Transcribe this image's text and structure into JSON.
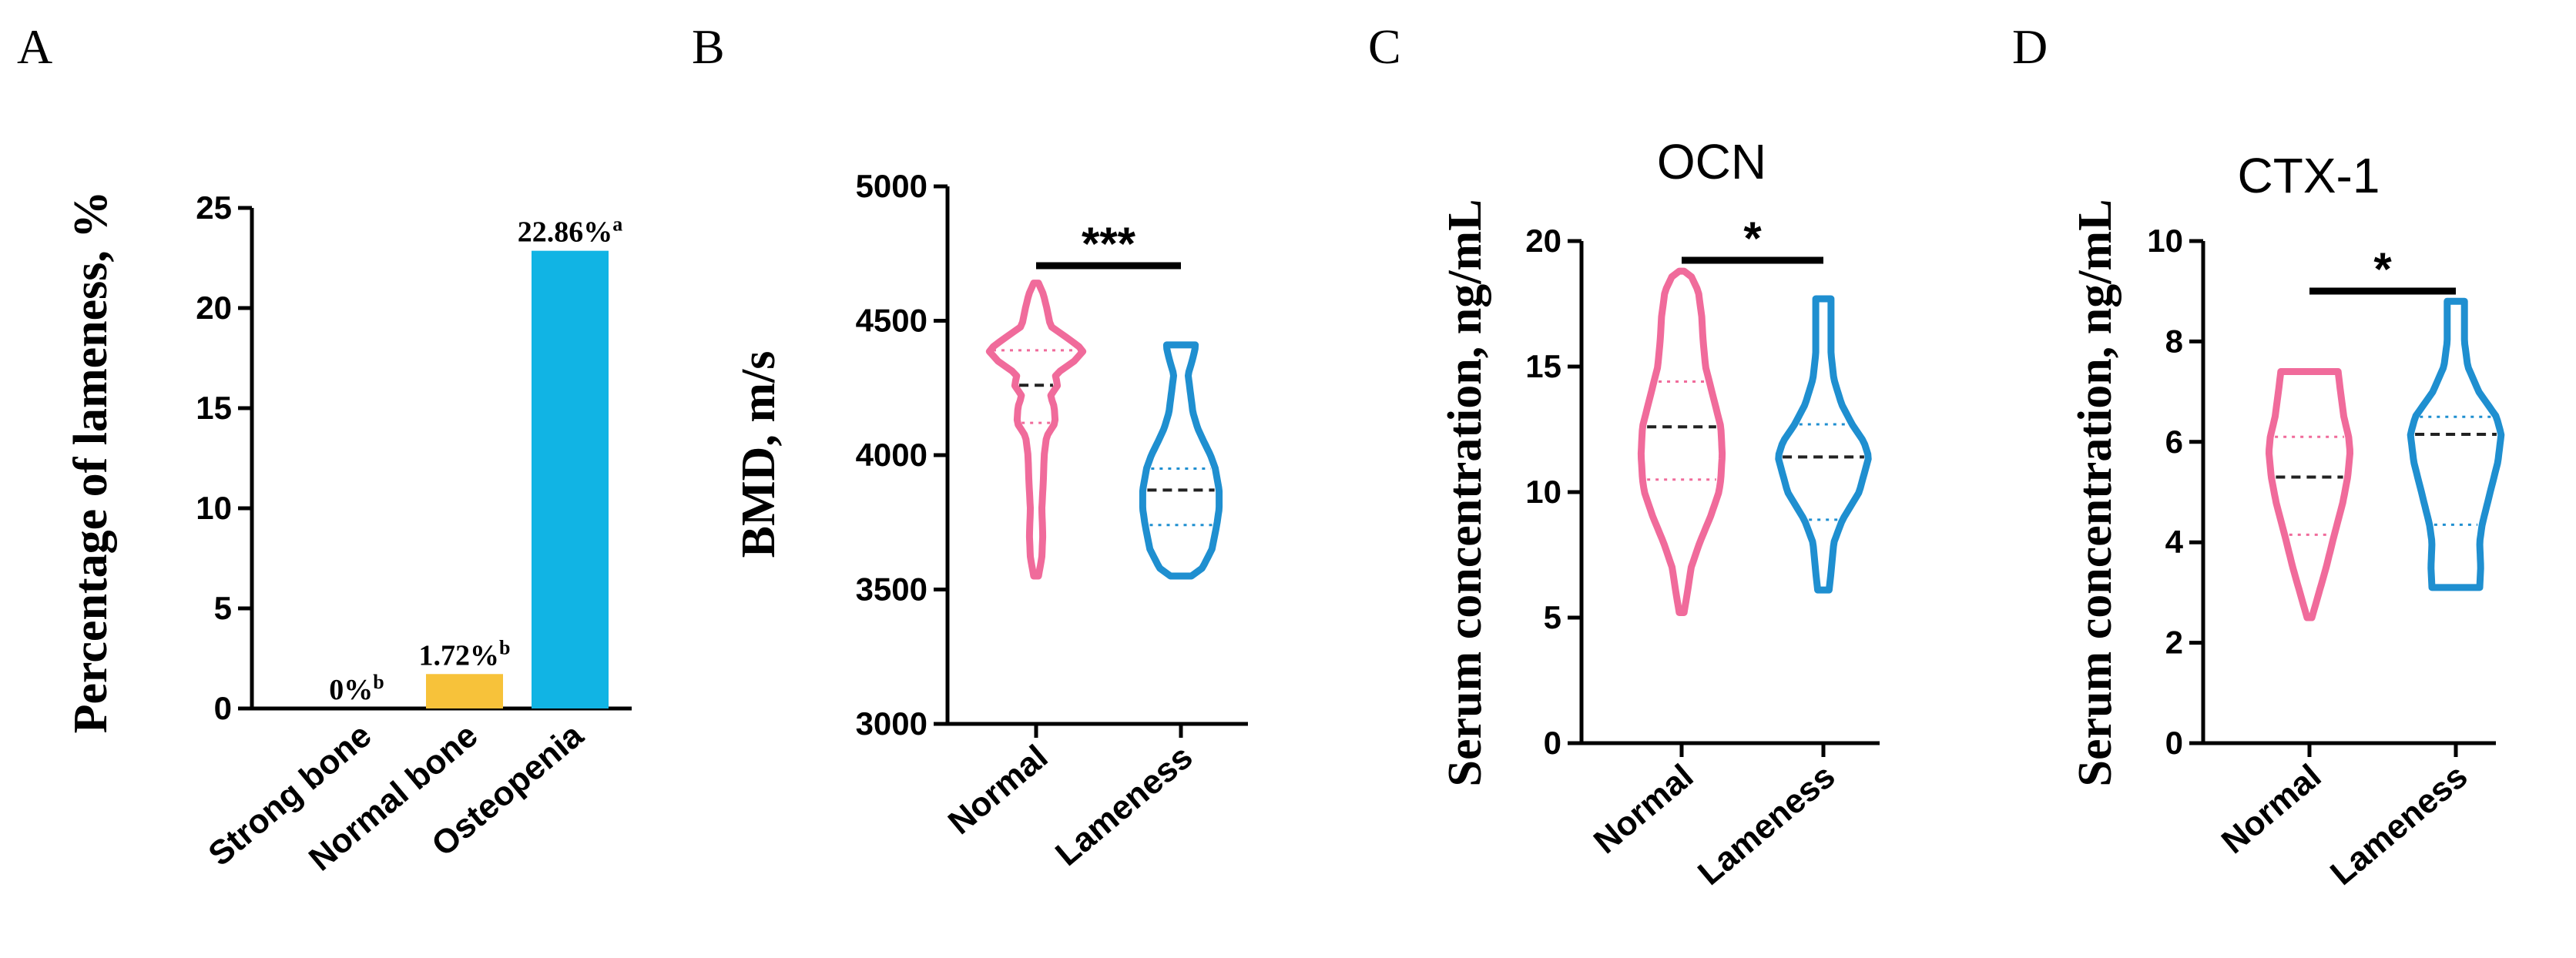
{
  "colors": {
    "normal": "#f06b9b",
    "lameness": "#1f8fd0",
    "strong_bone": "#f5c23b",
    "normal_bone": "#f7c23a",
    "osteopenia": "#11b4e4",
    "median_line": "#222222"
  },
  "chart_data": [
    {
      "panel": "A",
      "type": "bar",
      "title": "",
      "ylabel": "Percentage of lameness, %",
      "xlabel": "",
      "ylim": [
        0,
        25
      ],
      "yticks": [
        0,
        5,
        10,
        15,
        20,
        25
      ],
      "categories": [
        "Strong bone",
        "Normal bone",
        "Osteopenia"
      ],
      "values": [
        0,
        1.72,
        22.86
      ],
      "labels": [
        "0%",
        "1.72%",
        "22.86%"
      ],
      "superscripts": [
        "b",
        "b",
        "a"
      ]
    },
    {
      "panel": "B",
      "type": "violin",
      "title": "",
      "ylabel": "BMD, m/s",
      "ylim": [
        3000,
        5000
      ],
      "yticks": [
        3000,
        3500,
        4000,
        4500,
        5000
      ],
      "categories": [
        "Normal",
        "Lameness"
      ],
      "significance": "***",
      "series": [
        {
          "name": "Normal",
          "min": 3550,
          "max": 4640,
          "q1": 4120,
          "median": 4260,
          "q3": 4390,
          "profile": [
            [
              3550,
              0.05
            ],
            [
              3620,
              0.12
            ],
            [
              3700,
              0.14
            ],
            [
              3800,
              0.12
            ],
            [
              3900,
              0.15
            ],
            [
              4000,
              0.17
            ],
            [
              4070,
              0.22
            ],
            [
              4120,
              0.4
            ],
            [
              4180,
              0.38
            ],
            [
              4220,
              0.3
            ],
            [
              4260,
              0.45
            ],
            [
              4300,
              0.4
            ],
            [
              4350,
              0.8
            ],
            [
              4390,
              1.0
            ],
            [
              4430,
              0.7
            ],
            [
              4480,
              0.3
            ],
            [
              4550,
              0.22
            ],
            [
              4600,
              0.15
            ],
            [
              4640,
              0.05
            ]
          ]
        },
        {
          "name": "Lameness",
          "min": 3550,
          "max": 4410,
          "q1": 3740,
          "median": 3870,
          "q3": 3950,
          "profile": [
            [
              3550,
              0.22
            ],
            [
              3580,
              0.45
            ],
            [
              3650,
              0.65
            ],
            [
              3740,
              0.75
            ],
            [
              3800,
              0.8
            ],
            [
              3870,
              0.8
            ],
            [
              3950,
              0.72
            ],
            [
              4000,
              0.62
            ],
            [
              4050,
              0.48
            ],
            [
              4100,
              0.35
            ],
            [
              4160,
              0.25
            ],
            [
              4230,
              0.2
            ],
            [
              4300,
              0.15
            ],
            [
              4360,
              0.25
            ],
            [
              4400,
              0.3
            ],
            [
              4410,
              0.3
            ]
          ]
        }
      ]
    },
    {
      "panel": "C",
      "type": "violin",
      "title": "OCN",
      "ylabel": "Serum concentration, ng/mL",
      "ylim": [
        0,
        20
      ],
      "yticks": [
        0,
        5,
        10,
        15,
        20
      ],
      "categories": [
        "Normal",
        "Lameness"
      ],
      "significance": "*",
      "series": [
        {
          "name": "Normal",
          "min": 5.2,
          "max": 18.8,
          "q1": 10.5,
          "median": 12.6,
          "q3": 14.4,
          "profile": [
            [
              5.2,
              0.05
            ],
            [
              6.0,
              0.12
            ],
            [
              7.0,
              0.2
            ],
            [
              8.0,
              0.38
            ],
            [
              9.0,
              0.6
            ],
            [
              10.0,
              0.78
            ],
            [
              10.5,
              0.82
            ],
            [
              11.5,
              0.85
            ],
            [
              12.6,
              0.82
            ],
            [
              13.5,
              0.7
            ],
            [
              14.4,
              0.58
            ],
            [
              15.0,
              0.5
            ],
            [
              16.0,
              0.45
            ],
            [
              17.0,
              0.42
            ],
            [
              18.0,
              0.35
            ],
            [
              18.6,
              0.2
            ],
            [
              18.8,
              0.05
            ]
          ]
        },
        {
          "name": "Lameness",
          "min": 6.1,
          "max": 17.7,
          "q1": 8.9,
          "median": 11.4,
          "q3": 12.7,
          "profile": [
            [
              6.1,
              0.12
            ],
            [
              6.8,
              0.16
            ],
            [
              8.0,
              0.22
            ],
            [
              8.9,
              0.4
            ],
            [
              10.0,
              0.75
            ],
            [
              11.4,
              0.95
            ],
            [
              12.0,
              0.85
            ],
            [
              12.7,
              0.6
            ],
            [
              13.5,
              0.38
            ],
            [
              14.5,
              0.22
            ],
            [
              15.5,
              0.16
            ],
            [
              16.5,
              0.16
            ],
            [
              17.7,
              0.16
            ]
          ]
        }
      ]
    },
    {
      "panel": "D",
      "type": "violin",
      "title": "CTX-1",
      "ylabel": "Serum concentration, ng/mL",
      "ylim": [
        0,
        10
      ],
      "yticks": [
        0,
        2,
        4,
        6,
        8,
        10
      ],
      "categories": [
        "Normal",
        "Lameness"
      ],
      "significance": "*",
      "series": [
        {
          "name": "Normal",
          "min": 2.5,
          "max": 7.4,
          "q1": 4.15,
          "median": 5.3,
          "q3": 6.1,
          "profile": [
            [
              2.5,
              0.05
            ],
            [
              3.0,
              0.2
            ],
            [
              3.5,
              0.35
            ],
            [
              4.15,
              0.52
            ],
            [
              4.8,
              0.7
            ],
            [
              5.3,
              0.8
            ],
            [
              5.8,
              0.85
            ],
            [
              6.1,
              0.82
            ],
            [
              6.5,
              0.72
            ],
            [
              7.0,
              0.65
            ],
            [
              7.4,
              0.6
            ]
          ]
        },
        {
          "name": "Lameness",
          "min": 3.1,
          "max": 8.8,
          "q1": 4.35,
          "median": 6.15,
          "q3": 6.5,
          "profile": [
            [
              3.1,
              0.5
            ],
            [
              3.5,
              0.52
            ],
            [
              4.0,
              0.5
            ],
            [
              4.35,
              0.55
            ],
            [
              5.0,
              0.72
            ],
            [
              5.6,
              0.88
            ],
            [
              6.15,
              0.95
            ],
            [
              6.5,
              0.85
            ],
            [
              7.0,
              0.48
            ],
            [
              7.5,
              0.25
            ],
            [
              8.0,
              0.18
            ],
            [
              8.5,
              0.18
            ],
            [
              8.8,
              0.18
            ]
          ]
        }
      ]
    }
  ]
}
